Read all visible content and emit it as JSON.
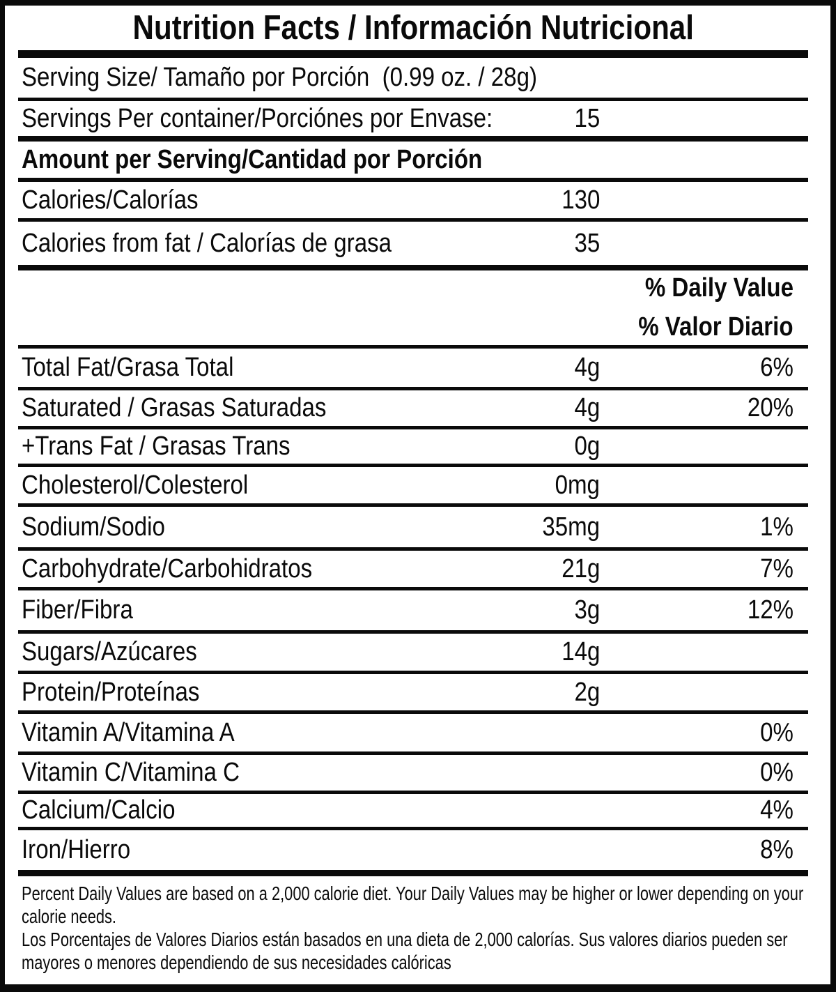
{
  "title": "Nutrition Facts / Información Nutricional",
  "serving": {
    "size_label": "Serving Size/ Tamaño por Porción  (0.99 oz. / 28g)",
    "per_container_label": "Servings Per container/Porciónes por Envase:",
    "per_container_value": "15"
  },
  "amount_header": "Amount per Serving/Cantidad por Porción",
  "calories": {
    "label": "Calories/Calorías",
    "value": "130"
  },
  "calories_from_fat": {
    "label": "Calories from fat / Calorías de grasa",
    "value": "35"
  },
  "daily_value_header": {
    "line1": "% Daily Value",
    "line2": "% Valor Diario"
  },
  "nutrients": [
    {
      "label": "Total Fat/Grasa Total",
      "amount": "4g",
      "dv": "6%"
    },
    {
      "label": "Saturated / Grasas Saturadas",
      "amount": "4g",
      "dv": "20%"
    },
    {
      "label": "+Trans Fat / Grasas Trans",
      "amount": "0g",
      "dv": ""
    },
    {
      "label": "Cholesterol/Colesterol",
      "amount": "0mg",
      "dv": ""
    },
    {
      "label": "Sodium/Sodio",
      "amount": "35mg",
      "dv": "1%"
    },
    {
      "label": "Carbohydrate/Carbohidratos",
      "amount": "21g",
      "dv": "7%"
    },
    {
      "label": "Fiber/Fibra",
      "amount": "3g",
      "dv": "12%"
    },
    {
      "label": "Sugars/Azúcares",
      "amount": "14g",
      "dv": ""
    },
    {
      "label": "Protein/Proteínas",
      "amount": "2g",
      "dv": ""
    },
    {
      "label": "Vitamin A/Vitamina A",
      "amount": "",
      "dv": "0%"
    },
    {
      "label": "Vitamin C/Vitamina C",
      "amount": "",
      "dv": "0%"
    },
    {
      "label": "Calcium/Calcio",
      "amount": "",
      "dv": "4%"
    },
    {
      "label": "Iron/Hierro",
      "amount": "",
      "dv": "8%"
    }
  ],
  "footnote": {
    "lines": [
      "Percent Daily Values are based on a 2,000 calorie diet. Your Daily Values may be higher or lower depending on your",
      "calorie needs.",
      "Los Porcentajes de Valores Diarios están basados en una dieta de 2,000 calorías. Sus valores diarios pueden ser",
      "mayores o menores dependiendo de sus necesidades calóricas"
    ]
  },
  "colors": {
    "text": "#0a0a0a",
    "background": "#ffffff",
    "border": "#0a0a0a"
  }
}
